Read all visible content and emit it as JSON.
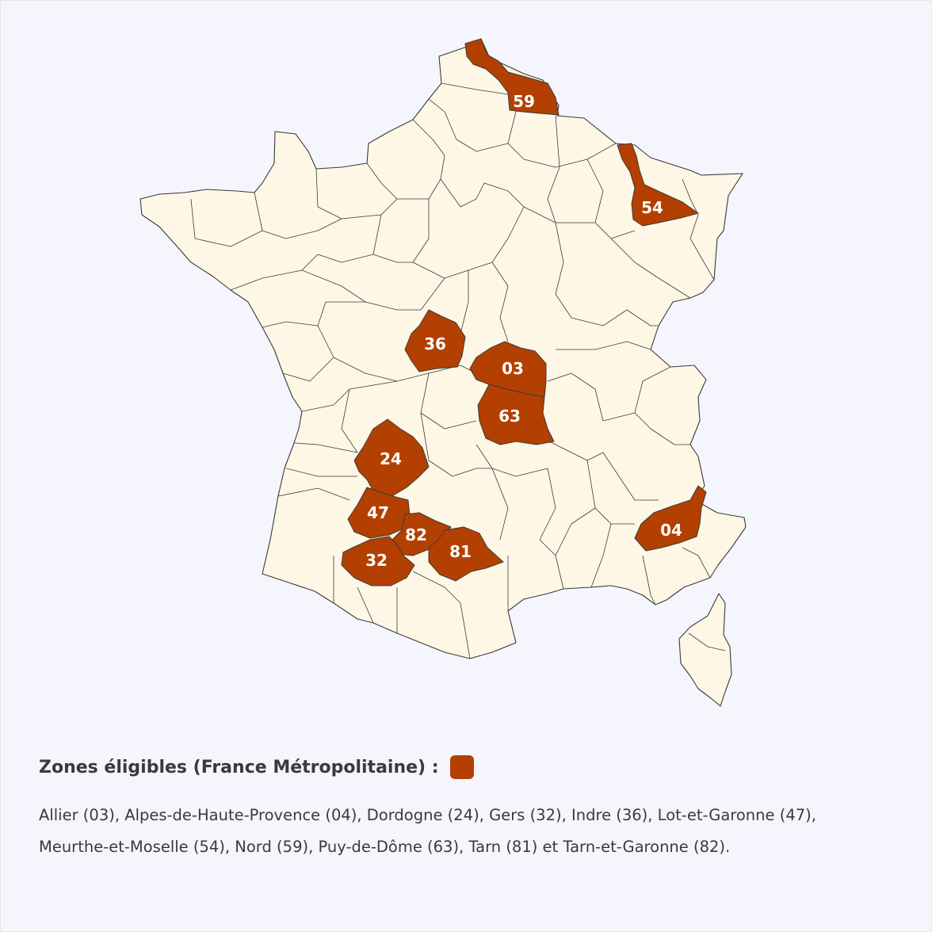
{
  "map": {
    "highlight_color": "#b34000",
    "base_color": "#fef7e6",
    "zones": [
      {
        "code": "59",
        "name": "Nord"
      },
      {
        "code": "54",
        "name": "Meurthe-et-Moselle"
      },
      {
        "code": "36",
        "name": "Indre"
      },
      {
        "code": "03",
        "name": "Allier"
      },
      {
        "code": "63",
        "name": "Puy-de-Dôme"
      },
      {
        "code": "24",
        "name": "Dordogne"
      },
      {
        "code": "47",
        "name": "Lot-et-Garonne"
      },
      {
        "code": "82",
        "name": "Tarn-et-Garonne"
      },
      {
        "code": "81",
        "name": "Tarn"
      },
      {
        "code": "32",
        "name": "Gers"
      },
      {
        "code": "04",
        "name": "Alpes-de-Haute-Provence"
      }
    ]
  },
  "legend": {
    "title": "Zones éligibles (France Métropolitaine) :",
    "swatch_color": "#b34000",
    "text": "Allier (03), Alpes-de-Haute-Provence (04), Dordogne (24), Gers (32), Indre (36), Lot-et-Garonne (47), Meurthe-et-Moselle (54), Nord (59), Puy-de-Dôme (63), Tarn (81) et Tarn-et-Garonne (82)."
  }
}
